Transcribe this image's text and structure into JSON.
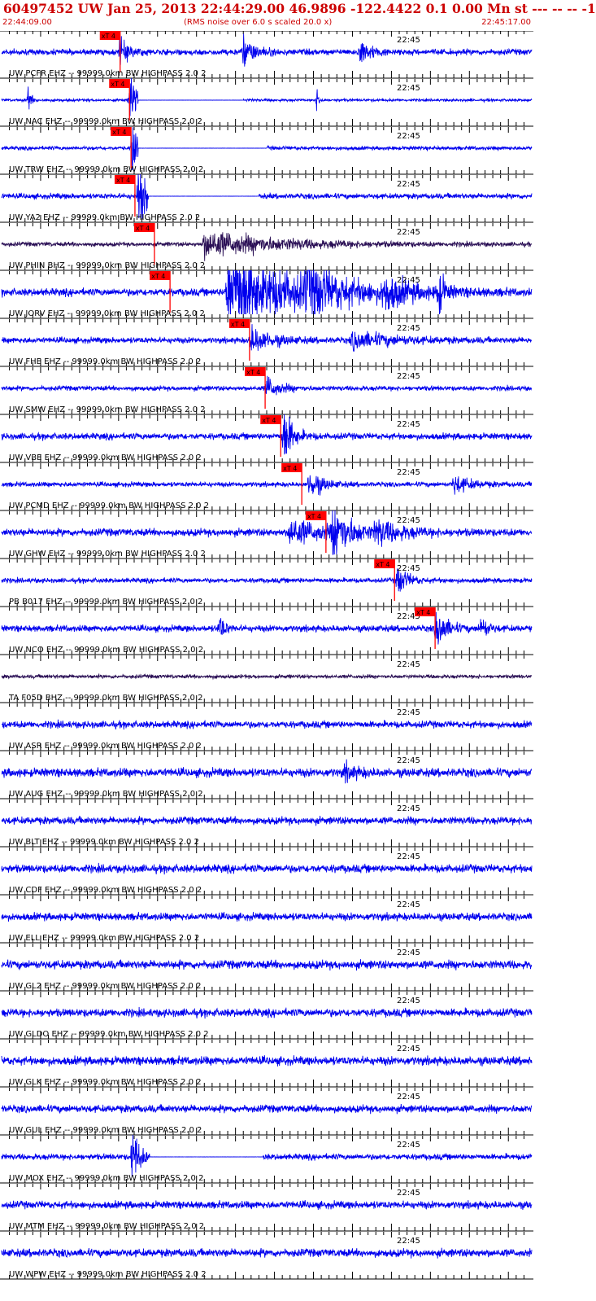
{
  "header": {
    "title": "60497452 UW Jan 25, 2013 22:44:29.00   46.9896 -122.4422  0.1 0.00 Mn st --- -- --   -1",
    "start_time": "22:44:09.00",
    "rms_note": "(RMS noise over 6.0 s scaled 20.0 x)",
    "end_time": "22:45:17.00"
  },
  "colors": {
    "trace_ehz": "#0000ee",
    "trace_bhz": "#2a0f55",
    "pick": "#ff0000",
    "pick_text": "#000000",
    "grid": "#000000",
    "header_text": "#cc0000"
  },
  "chart_data": {
    "type": "line",
    "x_unit": "seconds after 22:44:09",
    "x_range": [
      0,
      68
    ],
    "minute_tick_label": "22:45",
    "minute_tick_x": 51,
    "pick_label": "xT 4",
    "traces": [
      {
        "label": "UW PCFR EHZ -- 99999.0km BW  HIGHPASS  2.0  2",
        "pick": 15.2,
        "amp": 0.55,
        "dead": null,
        "bursts": [
          [
            15.2,
            1.2,
            2.2
          ],
          [
            31.0,
            1.5,
            2.6
          ],
          [
            46.0,
            1.3,
            2.4
          ]
        ]
      },
      {
        "label": "UW NAC EHZ -- 99999.0km BW  HIGHPASS  2.0  2",
        "pick": 16.4,
        "amp": 0.25,
        "dead": [
          17.5,
          31.0
        ],
        "bursts": [
          [
            16.6,
            0.5,
            8.0
          ],
          [
            3.5,
            0.3,
            2.5
          ],
          [
            40.5,
            0.3,
            2.0
          ]
        ]
      },
      {
        "label": "UW TRW EHZ -- 99999.0km BW  HIGHPASS  2.0  2",
        "pick": 16.6,
        "amp": 0.35,
        "dead": [
          17.5,
          34.0
        ],
        "bursts": [
          [
            16.8,
            0.6,
            8.0
          ]
        ]
      },
      {
        "label": "UW YA2 EHZ -- 99999.0km BW  HIGHPASS  2.0  2",
        "pick": 17.1,
        "amp": 0.5,
        "dead": [
          18.8,
          33.0
        ],
        "bursts": [
          [
            17.6,
            1.0,
            7.0
          ]
        ]
      },
      {
        "label": "UW PHIN BHZ -- 99999.0km BW  HIGHPASS  2.0  2",
        "pick": 19.6,
        "amp": 0.4,
        "dead": null,
        "bursts": [
          [
            26.0,
            9.0,
            2.6
          ]
        ]
      },
      {
        "label": "UW JORV EHZ -- 99999.0km BW  HIGHPASS  2.0  2",
        "pick": 21.6,
        "amp": 0.7,
        "dead": null,
        "bursts": [
          [
            29.0,
            8.0,
            9.0
          ],
          [
            39.0,
            4.0,
            4.0
          ],
          [
            49.0,
            2.5,
            3.0
          ],
          [
            56.0,
            0.7,
            4.5
          ]
        ]
      },
      {
        "label": "UW FHE EHZ -- 99999.0km BW  HIGHPASS  2.0  2",
        "pick": 31.8,
        "amp": 0.55,
        "dead": null,
        "bursts": [
          [
            32.0,
            2.5,
            2.5
          ],
          [
            45.0,
            5.0,
            1.6
          ]
        ]
      },
      {
        "label": "UW SMW EHZ -- 99999.0km BW  HIGHPASS  2.0  2",
        "pick": 33.8,
        "amp": 0.45,
        "dead": null,
        "bursts": [
          [
            34.0,
            1.5,
            2.2
          ]
        ]
      },
      {
        "label": "UW VBE EHZ -- 99999.0km BW  HIGHPASS  2.0  2",
        "pick": 35.8,
        "amp": 0.6,
        "dead": null,
        "bursts": [
          [
            36.2,
            1.0,
            6.0
          ]
        ]
      },
      {
        "label": "UW PCMD EHZ -- 99999.0km BW  HIGHPASS  2.0  2",
        "pick": 38.5,
        "amp": 0.45,
        "dead": null,
        "bursts": [
          [
            39.5,
            1.5,
            2.8
          ],
          [
            58.0,
            2.0,
            1.8
          ]
        ]
      },
      {
        "label": "UW GHW EHZ -- 99999.0km BW  HIGHPASS  2.0  2",
        "pick": 41.6,
        "amp": 0.7,
        "dead": null,
        "bursts": [
          [
            42.5,
            2.0,
            5.5
          ],
          [
            37.0,
            4.0,
            2.6
          ],
          [
            48.0,
            3.0,
            2.2
          ]
        ]
      },
      {
        "label": "PB B017 EHZ -- 99999.0km BW  HIGHPASS  2.0  2",
        "pick": 50.4,
        "amp": 0.45,
        "dead": null,
        "bursts": [
          [
            50.8,
            1.2,
            3.0
          ]
        ]
      },
      {
        "label": "UW NCO EHZ -- 99999.0km BW  HIGHPASS  2.0  2",
        "pick": 55.6,
        "amp": 0.6,
        "dead": null,
        "bursts": [
          [
            55.8,
            1.2,
            4.0
          ],
          [
            28.0,
            0.6,
            2.5
          ],
          [
            61.5,
            0.8,
            2.2
          ]
        ]
      },
      {
        "label": "TA F05D BHZ -- 99999.0km BW  HIGHPASS  2.0  2",
        "pick": null,
        "amp": 0.35,
        "dead": null,
        "bursts": []
      },
      {
        "label": "UW ASR EHZ -- 99999.0km BW  HIGHPASS  2.0  2",
        "pick": null,
        "amp": 0.65,
        "dead": null,
        "bursts": []
      },
      {
        "label": "UW AUG EHZ -- 99999.0km BW  HIGHPASS  2.0  2",
        "pick": null,
        "amp": 0.8,
        "dead": null,
        "bursts": [
          [
            44.0,
            1.5,
            1.4
          ]
        ]
      },
      {
        "label": "UW BLT EHZ -- 99999.0km BW  HIGHPASS  2.0  2",
        "pick": null,
        "amp": 0.7,
        "dead": null,
        "bursts": []
      },
      {
        "label": "UW CDF EHZ -- 99999.0km BW  HIGHPASS  2.0  2",
        "pick": null,
        "amp": 0.75,
        "dead": null,
        "bursts": []
      },
      {
        "label": "UW ELL EHZ -- 99999.0km BW  HIGHPASS  2.0  2",
        "pick": null,
        "amp": 0.7,
        "dead": null,
        "bursts": []
      },
      {
        "label": "UW GL2 EHZ -- 99999.0km BW  HIGHPASS  2.0  2",
        "pick": null,
        "amp": 0.8,
        "dead": null,
        "bursts": []
      },
      {
        "label": "UW GLDO EHZ -- 99999.0km BW  HIGHPASS  2.0  2",
        "pick": null,
        "amp": 0.75,
        "dead": null,
        "bursts": []
      },
      {
        "label": "UW GLK EHZ -- 99999.0km BW  HIGHPASS  2.0  2",
        "pick": null,
        "amp": 0.8,
        "dead": null,
        "bursts": []
      },
      {
        "label": "UW GUL EHZ -- 99999.0km BW  HIGHPASS  2.0  2",
        "pick": null,
        "amp": 0.7,
        "dead": null,
        "bursts": []
      },
      {
        "label": "UW MOX EHZ -- 99999.0km BW  HIGHPASS  2.0  2",
        "pick": null,
        "amp": 0.55,
        "dead": [
          19.0,
          33.5
        ],
        "bursts": [
          [
            16.8,
            0.8,
            6.0
          ]
        ]
      },
      {
        "label": "UW MTM EHZ -- 99999.0km BW  HIGHPASS  2.0  2",
        "pick": null,
        "amp": 0.7,
        "dead": null,
        "bursts": []
      },
      {
        "label": "UW WPW EHZ -- 99999.0km BW  HIGHPASS  2.0  2",
        "pick": null,
        "amp": 0.75,
        "dead": null,
        "bursts": []
      }
    ]
  }
}
